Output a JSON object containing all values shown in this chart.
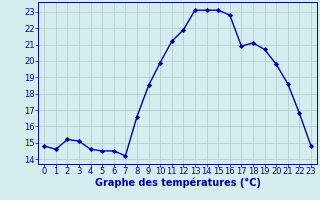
{
  "hours": [
    0,
    1,
    2,
    3,
    4,
    5,
    6,
    7,
    8,
    9,
    10,
    11,
    12,
    13,
    14,
    15,
    16,
    17,
    18,
    19,
    20,
    21,
    22,
    23
  ],
  "temps": [
    14.8,
    14.6,
    15.2,
    15.1,
    14.6,
    14.5,
    14.5,
    14.2,
    16.6,
    18.5,
    19.9,
    21.2,
    21.9,
    23.1,
    23.1,
    23.1,
    22.8,
    20.9,
    21.1,
    20.7,
    19.8,
    18.6,
    16.8,
    14.8
  ],
  "line_color": "#0000aa",
  "marker": "D",
  "marker_size": 2.2,
  "bg_color": "#d4eef0",
  "grid_color": "#b0c8cc",
  "ylabel_ticks": [
    14,
    15,
    16,
    17,
    18,
    19,
    20,
    21,
    22,
    23
  ],
  "ylim": [
    13.7,
    23.6
  ],
  "xlim": [
    -0.5,
    23.5
  ],
  "xticks": [
    0,
    1,
    2,
    3,
    4,
    5,
    6,
    7,
    8,
    9,
    10,
    11,
    12,
    13,
    14,
    15,
    16,
    17,
    18,
    19,
    20,
    21,
    22,
    23
  ],
  "xlabel": "Graphe des températures (°C)",
  "xlabel_fontsize": 7.0,
  "tick_fontsize": 6.0,
  "axis_color": "#0000aa",
  "linewidth": 1.0
}
